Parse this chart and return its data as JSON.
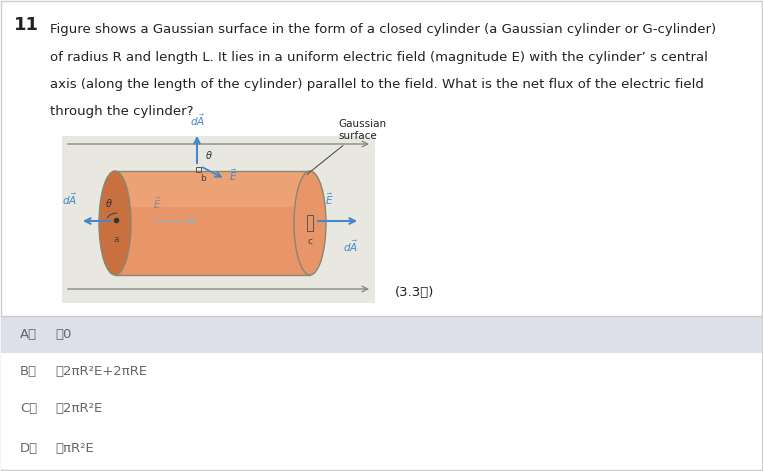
{
  "title_num": "11",
  "question_lines": [
    "Figure shows a Gaussian surface in the form of a closed cylinder (a Gaussian cylinder or G-cylinder)",
    "of radius R and length L. It lies in a uniform electric field (magnitude E) with the cylinder’ s central",
    "axis (along the length of the cylinder) parallel to the field. What is the net flux of the electric field",
    "through the cylinder?"
  ],
  "score_text": "(3.3分)",
  "options": [
    {
      "label": "A．",
      "text": "，0"
    },
    {
      "label": "B．",
      "text": "，2πR²E+2πRE"
    },
    {
      "label": "C．",
      "text": "，2πR²E"
    },
    {
      "label": "D．",
      "text": "，πR²E"
    }
  ],
  "white_bg": "#ffffff",
  "diag_bg": "#e8e8e0",
  "option_A_bg": "#dde0ea",
  "option_other_bg": "#f4f4f8",
  "cylinder_body": "#e8956a",
  "cylinder_shadow": "#c87040",
  "cylinder_highlight": "#f0b080",
  "arrow_blue": "#4488cc",
  "text_dark": "#222222",
  "text_gray": "#666666",
  "border_color": "#cccccc",
  "diag_arrow_color": "#888888"
}
